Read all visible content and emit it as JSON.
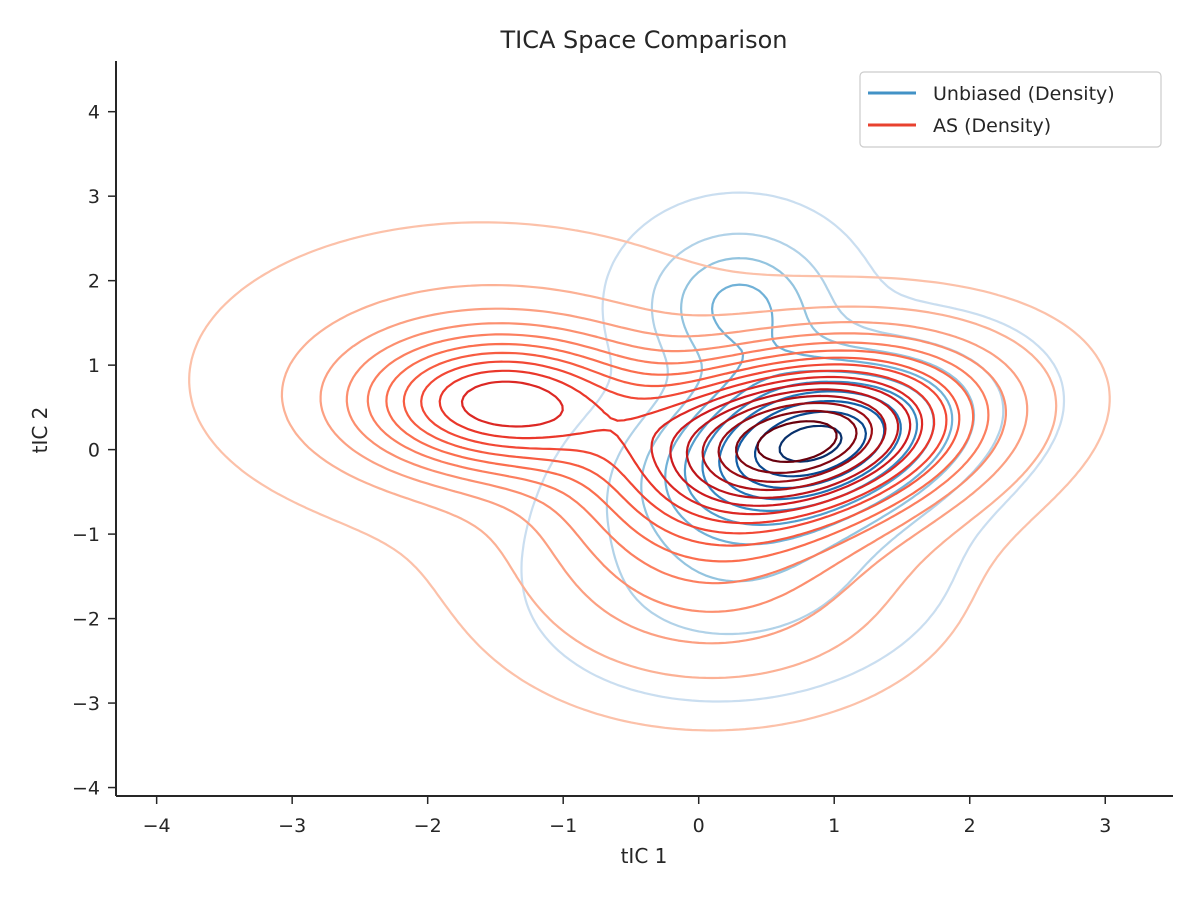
{
  "chart_data": {
    "type": "contour",
    "title": "TICA Space Comparison",
    "xlabel": "tIC 1",
    "ylabel": "tIC 2",
    "xlim": [
      -4.3,
      3.5
    ],
    "ylim": [
      -4.1,
      4.6
    ],
    "xticks": [
      -4,
      -3,
      -2,
      -1,
      0,
      1,
      2,
      3
    ],
    "yticks": [
      -4,
      -3,
      -2,
      -1,
      0,
      1,
      2,
      3,
      4
    ],
    "xtick_labels": [
      "−4",
      "−3",
      "−2",
      "−1",
      "0",
      "1",
      "2",
      "3"
    ],
    "ytick_labels": [
      "−4",
      "−3",
      "−2",
      "−1",
      "0",
      "1",
      "2",
      "3",
      "4"
    ],
    "grid": false,
    "legend_position": "top-right",
    "series": [
      {
        "name": "Unbiased (Density)",
        "legend_color": "#4292c6",
        "colormap": "Blues",
        "levels": 10,
        "components": [
          {
            "weight": 1.0,
            "mx": 0.85,
            "my": 0.1,
            "sx": 0.7,
            "sy": 0.62,
            "rho": 0.3
          },
          {
            "weight": 0.38,
            "mx": 0.3,
            "my": 1.7,
            "sx": 0.45,
            "sy": 0.6,
            "rho": 0.0
          },
          {
            "weight": 0.22,
            "mx": 0.3,
            "my": -1.4,
            "sx": 0.8,
            "sy": 0.8,
            "rho": 0.1
          }
        ]
      },
      {
        "name": "AS (Density)",
        "legend_color": "#e8412f",
        "colormap": "Reds",
        "levels": 16,
        "components": [
          {
            "weight": 1.0,
            "mx": 0.8,
            "my": 0.15,
            "sx": 0.85,
            "sy": 0.7,
            "rho": 0.25
          },
          {
            "weight": 0.55,
            "mx": -1.45,
            "my": 0.55,
            "sx": 0.7,
            "sy": 0.55,
            "rho": 0.0
          },
          {
            "weight": 0.25,
            "mx": 0.1,
            "my": -1.4,
            "sx": 0.95,
            "sy": 0.95,
            "rho": 0.0
          },
          {
            "weight": 0.12,
            "mx": -1.6,
            "my": 0.9,
            "sx": 1.3,
            "sy": 1.1,
            "rho": 0.0
          }
        ]
      }
    ]
  }
}
